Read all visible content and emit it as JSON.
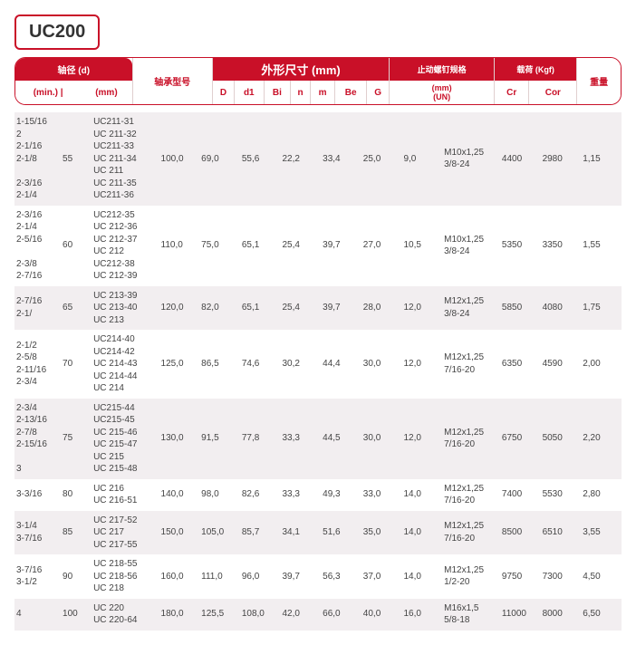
{
  "title": "UC200",
  "header": {
    "shaft_group": "轴径 (d)",
    "min": "(min.)",
    "mm": "(mm)",
    "pipe": "|",
    "model": "轴承型号",
    "dims_group": "外形尺寸 (mm)",
    "D": "D",
    "d1": "d1",
    "Bi": "Bi",
    "n": "n",
    "m": "m",
    "Be": "Be",
    "G": "G",
    "bolt_group": "止动螺钉规格",
    "bolt_sub": "(mm)\n(UN)",
    "load_group": "载荷 (Kgf)",
    "Cr": "Cr",
    "Cor": "Cor",
    "weight": "重量"
  },
  "rows": [
    {
      "mins": "1-15/16\n2\n2-1/16\n2-1/8\n\n2-3/16\n2-1/4",
      "mm": "55",
      "models": "UC211-31\nUC 211-32\nUC211-33\nUC 211-34\nUC 211\nUC 211-35\nUC211-36",
      "D": "100,0",
      "d1": "69,0",
      "Bi": "55,6",
      "n": "22,2",
      "m": "33,4",
      "Be": "25,0",
      "G": "9,0",
      "bolt": "M10x1,25\n3/8-24",
      "Cr": "4400",
      "Cor": "2980",
      "wt": "1,15"
    },
    {
      "mins": "2-3/16\n2-1/4\n2-5/16\n\n2-3/8\n2-7/16",
      "mm": "60",
      "models": "UC212-35\nUC 212-36\nUC 212-37\nUC 212\nUC212-38\nUC 212-39",
      "D": "110,0",
      "d1": "75,0",
      "Bi": "65,1",
      "n": "25,4",
      "m": "39,7",
      "Be": "27,0",
      "G": "10,5",
      "bolt": "M10x1,25\n3/8-24",
      "Cr": "5350",
      "Cor": "3350",
      "wt": "1,55"
    },
    {
      "mins": "2-7/16\n2-1/",
      "mm": "65",
      "models": "UC 213-39\nUC 213-40\nUC 213",
      "D": "120,0",
      "d1": "82,0",
      "Bi": "65,1",
      "n": "25,4",
      "m": "39,7",
      "Be": "28,0",
      "G": "12,0",
      "bolt": "M12x1,25\n3/8-24",
      "Cr": "5850",
      "Cor": "4080",
      "wt": "1,75"
    },
    {
      "mins": "2-1/2\n2-5/8\n2-11/16\n2-3/4",
      "mm": "70",
      "models": "UC214-40\nUC214-42\nUC 214-43\nUC 214-44\nUC 214",
      "D": "125,0",
      "d1": "86,5",
      "Bi": "74,6",
      "n": "30,2",
      "m": "44,4",
      "Be": "30,0",
      "G": "12,0",
      "bolt": "M12x1,25\n7/16-20",
      "Cr": "6350",
      "Cor": "4590",
      "wt": "2,00"
    },
    {
      "mins": "2-3/4\n2-13/16\n2-7/8\n2-15/16\n\n3",
      "mm": "75",
      "models": "UC215-44\nUC215-45\nUC 215-46\nUC 215-47\nUC 215\nUC 215-48",
      "D": "130,0",
      "d1": "91,5",
      "Bi": "77,8",
      "n": "33,3",
      "m": "44,5",
      "Be": "30,0",
      "G": "12,0",
      "bolt": "M12x1,25\n7/16-20",
      "Cr": "6750",
      "Cor": "5050",
      "wt": "2,20"
    },
    {
      "mins": "3-3/16",
      "mm": "80",
      "models": "UC 216\nUC 216-51",
      "D": "140,0",
      "d1": "98,0",
      "Bi": "82,6",
      "n": "33,3",
      "m": "49,3",
      "Be": "33,0",
      "G": "14,0",
      "bolt": "M12x1,25\n7/16-20",
      "Cr": "7400",
      "Cor": "5530",
      "wt": "2,80"
    },
    {
      "mins": "3-1/4\n3-7/16",
      "mm": "85",
      "models": "UC 217-52\nUC 217\nUC 217-55",
      "D": "150,0",
      "d1": "105,0",
      "Bi": "85,7",
      "n": "34,1",
      "m": "51,6",
      "Be": "35,0",
      "G": "14,0",
      "bolt": "M12x1,25\n7/16-20",
      "Cr": "8500",
      "Cor": "6510",
      "wt": "3,55"
    },
    {
      "mins": "3-7/16\n3-1/2",
      "mm": "90",
      "models": "UC 218-55\nUC 218-56\nUC 218",
      "D": "160,0",
      "d1": "111,0",
      "Bi": "96,0",
      "n": "39,7",
      "m": "56,3",
      "Be": "37,0",
      "G": "14,0",
      "bolt": "M12x1,25\n1/2-20",
      "Cr": "9750",
      "Cor": "7300",
      "wt": "4,50"
    },
    {
      "mins": "4",
      "mm": "100",
      "models": "UC 220\nUC 220-64",
      "D": "180,0",
      "d1": "125,5",
      "Bi": "108,0",
      "n": "42,0",
      "m": "66,0",
      "Be": "40,0",
      "G": "16,0",
      "bolt": "M16x1,5\n5/8-18",
      "Cr": "11000",
      "Cor": "8000",
      "wt": "6,50"
    }
  ]
}
